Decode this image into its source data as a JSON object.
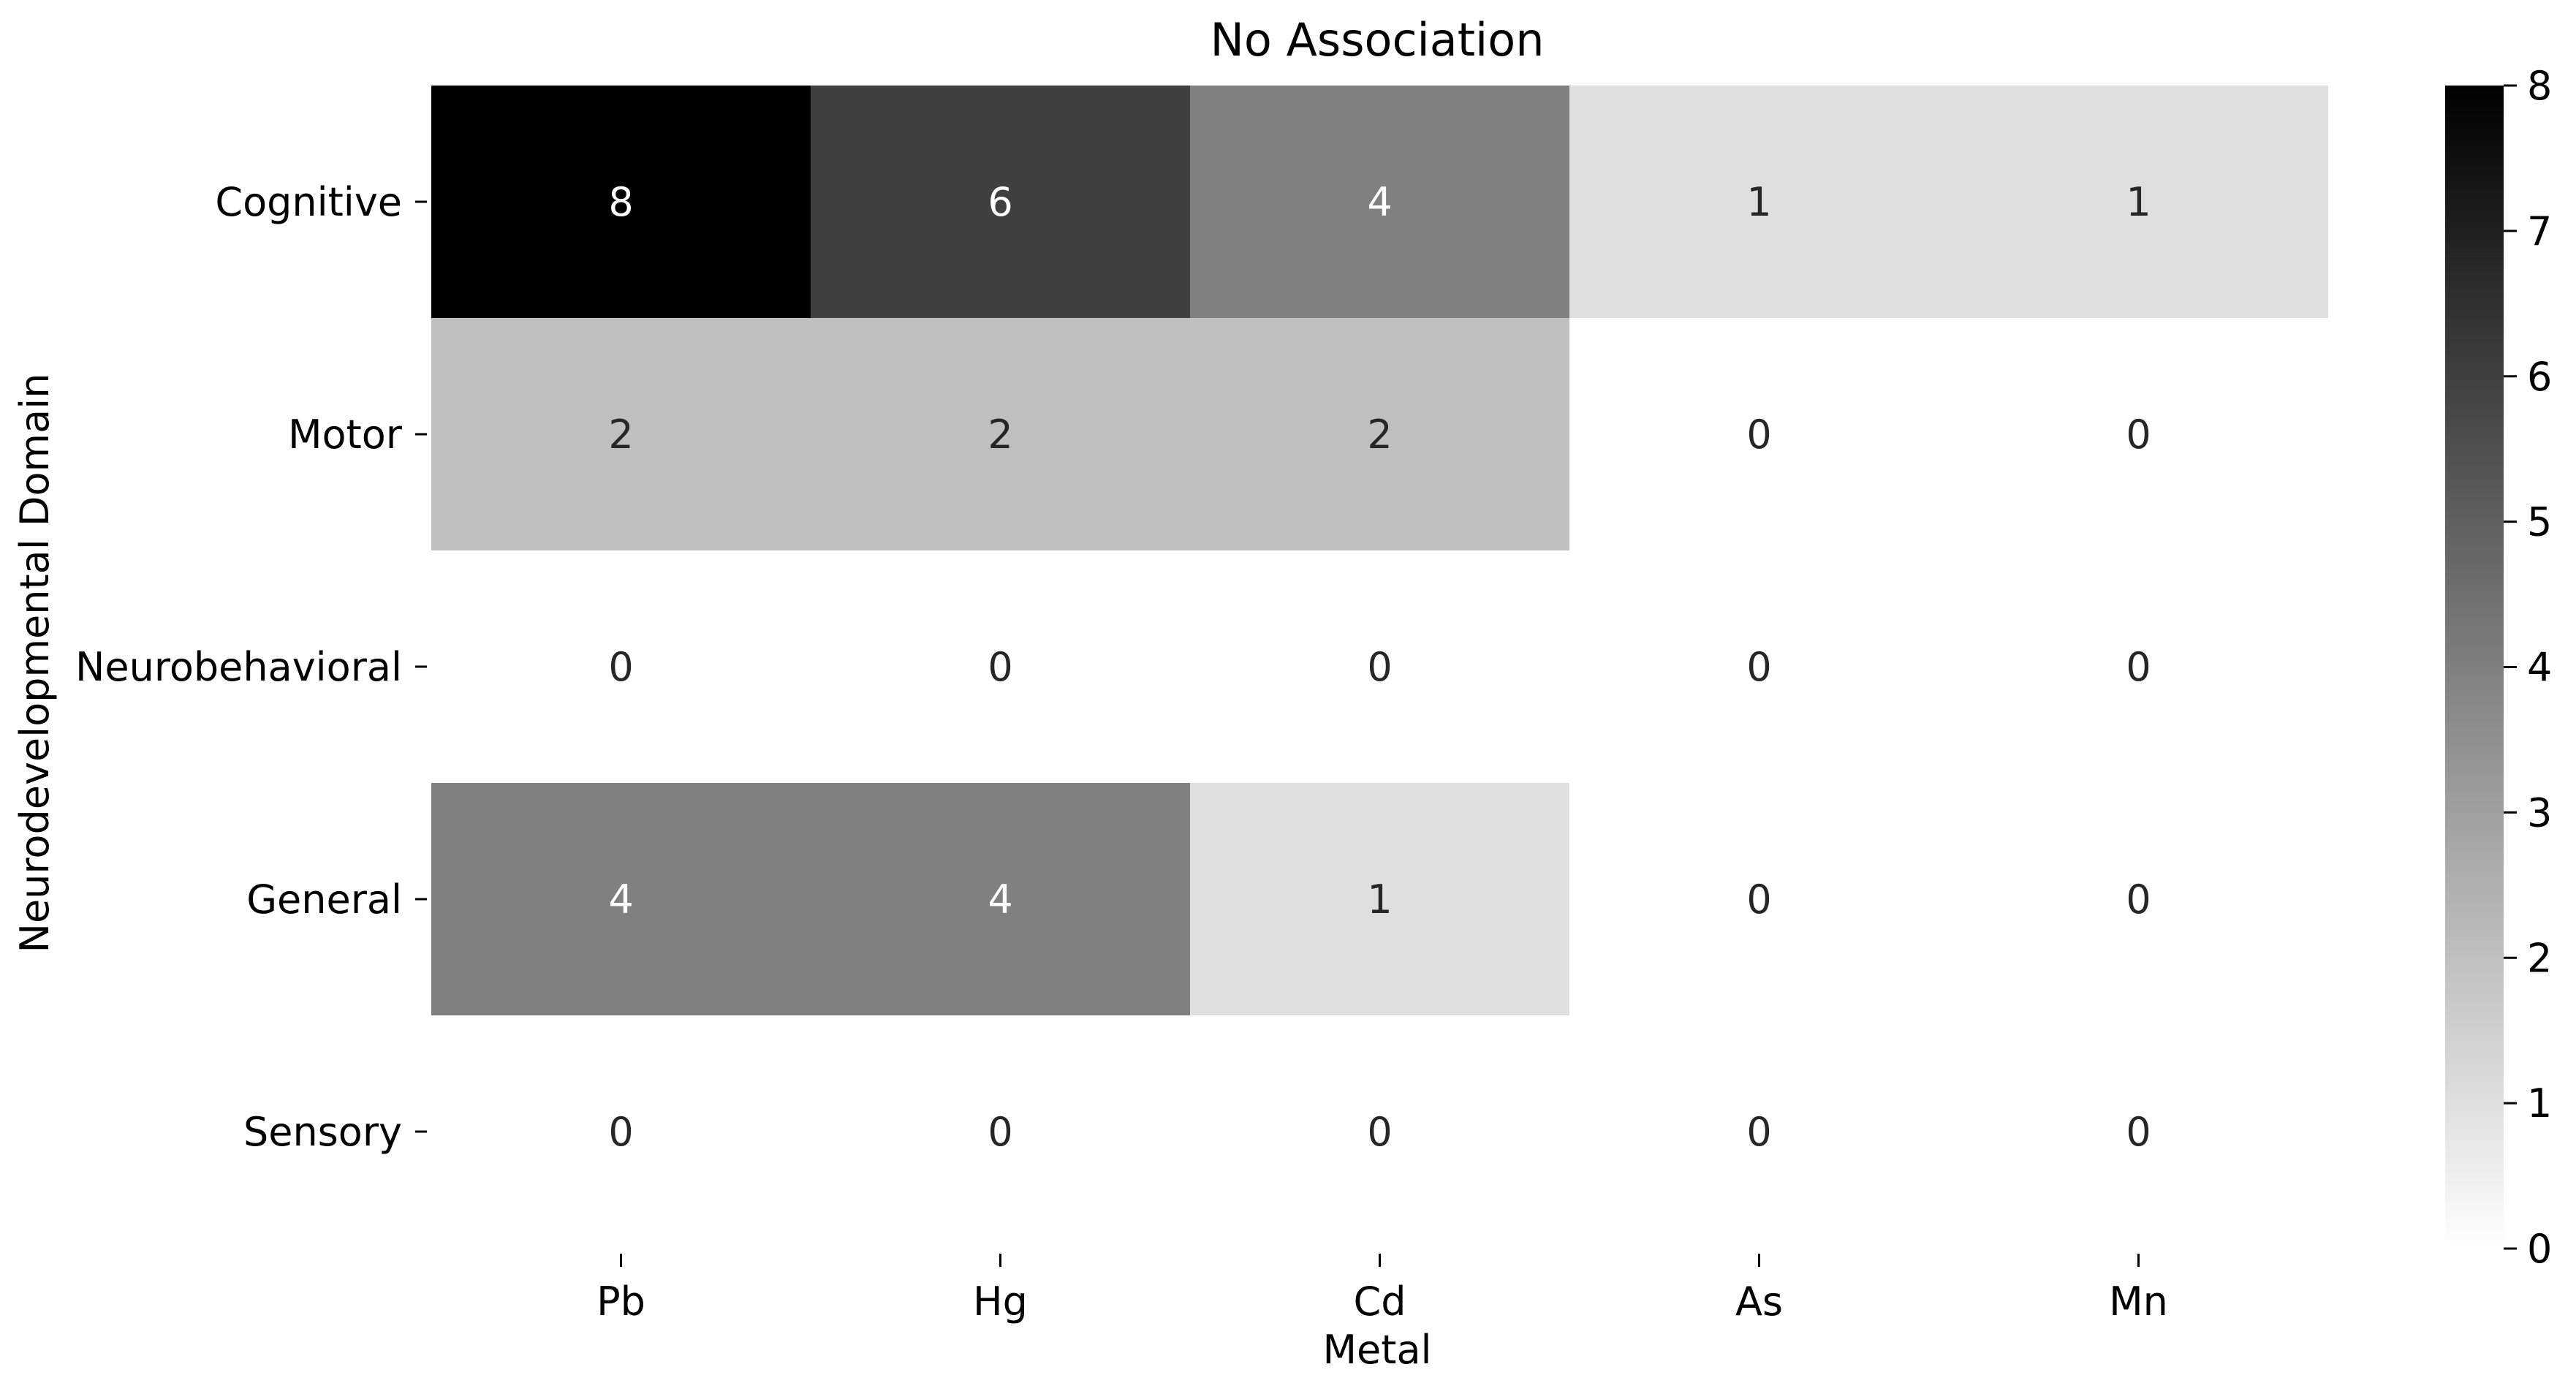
{
  "chart_data": {
    "type": "heatmap",
    "title": "No Association",
    "xlabel": "Metal",
    "ylabel": "Neurodevelopmental Domain",
    "x_categories": [
      "Pb",
      "Hg",
      "Cd",
      "As",
      "Mn"
    ],
    "y_categories": [
      "Cognitive",
      "Motor",
      "Neurobehavioral",
      "General",
      "Sensory"
    ],
    "values": [
      [
        8,
        6,
        4,
        1,
        1
      ],
      [
        2,
        2,
        2,
        0,
        0
      ],
      [
        0,
        0,
        0,
        0,
        0
      ],
      [
        4,
        4,
        1,
        0,
        0
      ],
      [
        0,
        0,
        0,
        0,
        0
      ]
    ],
    "colorscale": {
      "min": 0,
      "max": 8,
      "low_color": "#ffffff",
      "high_color": "#000000"
    },
    "colorbar_ticks": [
      "0",
      "1",
      "2",
      "3",
      "4",
      "5",
      "6",
      "7",
      "8"
    ],
    "annotations": true
  }
}
